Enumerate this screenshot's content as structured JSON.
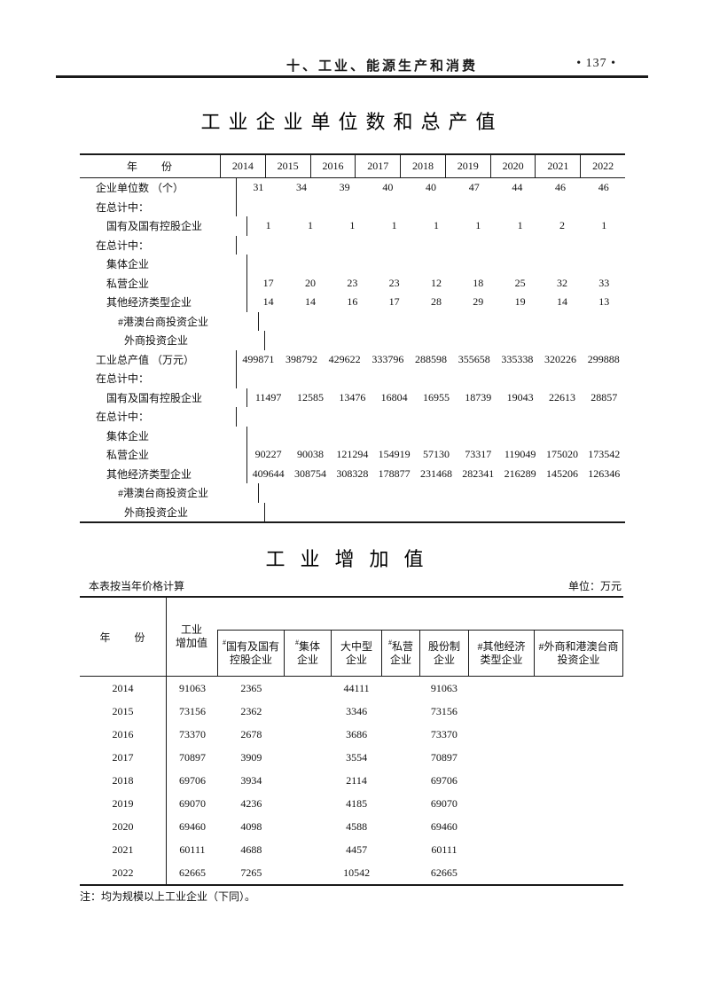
{
  "page_header": {
    "section_title": "十、工业、能源生产和消费",
    "page_number": "• 137 •"
  },
  "table1": {
    "title": "工业企业单位数和总产值",
    "year_header": "年　　份",
    "years": [
      "2014",
      "2015",
      "2016",
      "2017",
      "2018",
      "2019",
      "2020",
      "2021",
      "2022"
    ],
    "rows": [
      {
        "label": "企业单位数 （个）",
        "indent": 0,
        "values": [
          "31",
          "34",
          "39",
          "40",
          "40",
          "47",
          "44",
          "46",
          "46"
        ]
      },
      {
        "label": "在总计中：",
        "indent": 0,
        "values": [
          "",
          "",
          "",
          "",
          "",
          "",
          "",
          "",
          ""
        ]
      },
      {
        "label": "国有及国有控股企业",
        "indent": 1,
        "values": [
          "1",
          "1",
          "1",
          "1",
          "1",
          "1",
          "1",
          "2",
          "1"
        ]
      },
      {
        "label": "在总计中：",
        "indent": 0,
        "values": [
          "",
          "",
          "",
          "",
          "",
          "",
          "",
          "",
          ""
        ]
      },
      {
        "label": "集体企业",
        "indent": 1,
        "values": [
          "",
          "",
          "",
          "",
          "",
          "",
          "",
          "",
          ""
        ]
      },
      {
        "label": "私营企业",
        "indent": 1,
        "values": [
          "17",
          "20",
          "23",
          "23",
          "12",
          "18",
          "25",
          "32",
          "33"
        ]
      },
      {
        "label": "其他经济类型企业",
        "indent": 1,
        "values": [
          "14",
          "14",
          "16",
          "17",
          "28",
          "29",
          "19",
          "14",
          "13"
        ]
      },
      {
        "label": "#港澳台商投资企业",
        "indent": 2,
        "values": [
          "",
          "",
          "",
          "",
          "",
          "",
          "",
          "",
          ""
        ]
      },
      {
        "label": "外商投资企业",
        "indent": 3,
        "values": [
          "",
          "",
          "",
          "",
          "",
          "",
          "",
          "",
          ""
        ]
      },
      {
        "label": "工业总产值 （万元）",
        "indent": 0,
        "values": [
          "499871",
          "398792",
          "429622",
          "333796",
          "288598",
          "355658",
          "335338",
          "320226",
          "299888"
        ]
      },
      {
        "label": "在总计中：",
        "indent": 0,
        "values": [
          "",
          "",
          "",
          "",
          "",
          "",
          "",
          "",
          ""
        ]
      },
      {
        "label": "国有及国有控股企业",
        "indent": 1,
        "values": [
          "11497",
          "12585",
          "13476",
          "16804",
          "16955",
          "18739",
          "19043",
          "22613",
          "28857"
        ]
      },
      {
        "label": "在总计中：",
        "indent": 0,
        "values": [
          "",
          "",
          "",
          "",
          "",
          "",
          "",
          "",
          ""
        ]
      },
      {
        "label": "集体企业",
        "indent": 1,
        "values": [
          "",
          "",
          "",
          "",
          "",
          "",
          "",
          "",
          ""
        ]
      },
      {
        "label": "私营企业",
        "indent": 1,
        "values": [
          "90227",
          "90038",
          "121294",
          "154919",
          "57130",
          "73317",
          "119049",
          "175020",
          "173542"
        ]
      },
      {
        "label": "其他经济类型企业",
        "indent": 1,
        "values": [
          "409644",
          "308754",
          "308328",
          "178877",
          "231468",
          "282341",
          "216289",
          "145206",
          "126346"
        ]
      },
      {
        "label": "#港澳台商投资企业",
        "indent": 2,
        "values": [
          "",
          "",
          "",
          "",
          "",
          "",
          "",
          "",
          ""
        ]
      },
      {
        "label": "外商投资企业",
        "indent": 3,
        "values": [
          "",
          "",
          "",
          "",
          "",
          "",
          "",
          "",
          ""
        ]
      }
    ]
  },
  "table2": {
    "title": "工业增加值",
    "note_left": "本表按当年价格计算",
    "unit_label": "单位：万元",
    "year_header": "年　　份",
    "added_value_header": "工业\n增加值",
    "sub_headers": [
      {
        "sup": "#",
        "text": "国有及国有\n控股企业"
      },
      {
        "sup": "#",
        "text": "集体\n企业"
      },
      {
        "sup": "",
        "text": "大中型\n企业"
      },
      {
        "sup": "#",
        "text": "私营\n企业"
      },
      {
        "sup": "",
        "text": "股份制\n企业"
      },
      {
        "sup": "",
        "text": "#其他经济\n类型企业"
      },
      {
        "sup": "",
        "text": "#外商和港澳台商\n投资企业"
      }
    ],
    "rows": [
      {
        "year": "2014",
        "values": [
          "91063",
          "2365",
          "",
          "44111",
          "",
          "91063",
          "",
          ""
        ]
      },
      {
        "year": "2015",
        "values": [
          "73156",
          "2362",
          "",
          "3346",
          "",
          "73156",
          "",
          ""
        ]
      },
      {
        "year": "2016",
        "values": [
          "73370",
          "2678",
          "",
          "3686",
          "",
          "73370",
          "",
          ""
        ]
      },
      {
        "year": "2017",
        "values": [
          "70897",
          "3909",
          "",
          "3554",
          "",
          "70897",
          "",
          ""
        ]
      },
      {
        "year": "2018",
        "values": [
          "69706",
          "3934",
          "",
          "2114",
          "",
          "69706",
          "",
          ""
        ]
      },
      {
        "year": "2019",
        "values": [
          "69070",
          "4236",
          "",
          "4185",
          "",
          "69070",
          "",
          ""
        ]
      },
      {
        "year": "2020",
        "values": [
          "69460",
          "4098",
          "",
          "4588",
          "",
          "69460",
          "",
          ""
        ]
      },
      {
        "year": "2021",
        "values": [
          "60111",
          "4688",
          "",
          "4457",
          "",
          "60111",
          "",
          ""
        ]
      },
      {
        "year": "2022",
        "values": [
          "62665",
          "7265",
          "",
          "10542",
          "",
          "62665",
          "",
          ""
        ]
      }
    ],
    "footnote": "注：均为规模以上工业企业（下同）。"
  }
}
